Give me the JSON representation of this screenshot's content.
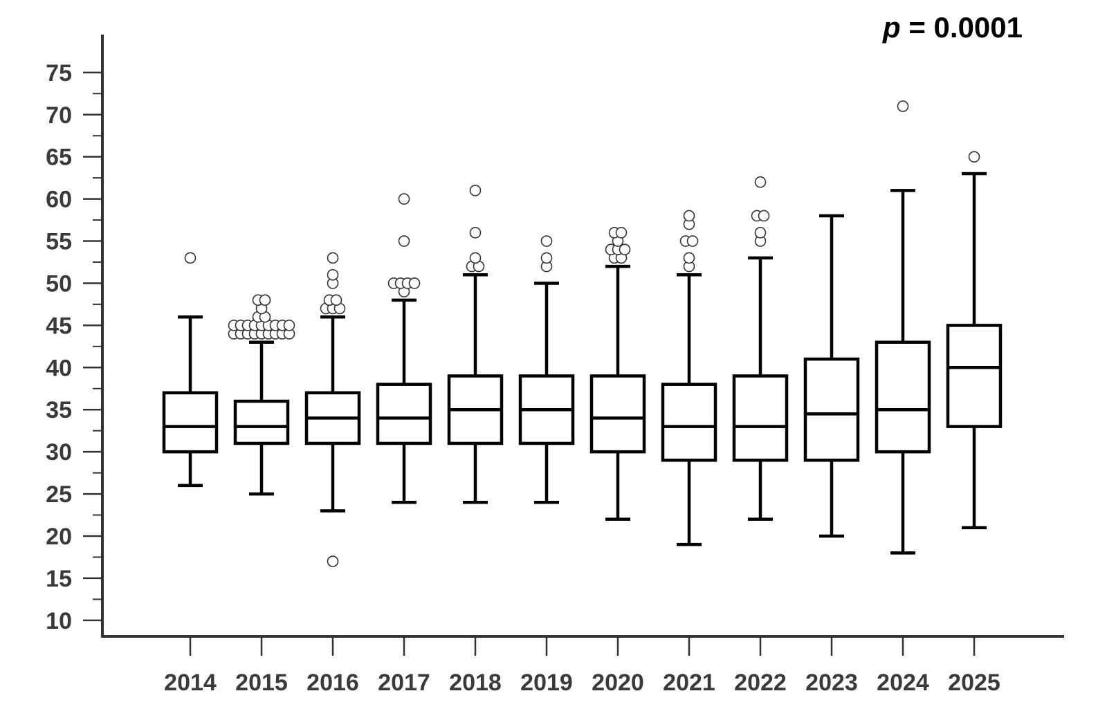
{
  "chart_data": {
    "type": "box",
    "annotation": {
      "italic": "p",
      "rest": " = 0.0001"
    },
    "y_ticks": [
      10,
      15,
      20,
      25,
      30,
      35,
      40,
      45,
      50,
      55,
      60,
      65,
      70,
      75
    ],
    "ylim": [
      8.1,
      79.5
    ],
    "categories": [
      "2014",
      "2015",
      "2016",
      "2017",
      "2018",
      "2019",
      "2020",
      "2021",
      "2022",
      "2023",
      "2024",
      "2025"
    ],
    "boxes": [
      {
        "category": "2014",
        "whisker_low": 26,
        "q1": 30,
        "median": 33,
        "q3": 37,
        "whisker_high": 46,
        "outliers": [
          53
        ]
      },
      {
        "category": "2015",
        "whisker_low": 25,
        "q1": 31,
        "median": 33,
        "q3": 36,
        "whisker_high": 43,
        "outliers": [
          44,
          44,
          44,
          44,
          44,
          44,
          44,
          44,
          44,
          45,
          45,
          45,
          45,
          45,
          45,
          45,
          45,
          45,
          46,
          46,
          47,
          48,
          48
        ]
      },
      {
        "category": "2016",
        "whisker_low": 23,
        "q1": 31,
        "median": 34,
        "q3": 37,
        "whisker_high": 46,
        "outliers": [
          17,
          47,
          47,
          47,
          48,
          48,
          50,
          51,
          53
        ]
      },
      {
        "category": "2017",
        "whisker_low": 24,
        "q1": 31,
        "median": 34,
        "q3": 38,
        "whisker_high": 48,
        "outliers": [
          49,
          50,
          50,
          50,
          50,
          55,
          60
        ]
      },
      {
        "category": "2018",
        "whisker_low": 24,
        "q1": 31,
        "median": 35,
        "q3": 39,
        "whisker_high": 51,
        "outliers": [
          52,
          52,
          53,
          56,
          61
        ]
      },
      {
        "category": "2019",
        "whisker_low": 24,
        "q1": 31,
        "median": 35,
        "q3": 39,
        "whisker_high": 50,
        "outliers": [
          52,
          53,
          55
        ]
      },
      {
        "category": "2020",
        "whisker_low": 22,
        "q1": 30,
        "median": 34,
        "q3": 39,
        "whisker_high": 52,
        "outliers": [
          53,
          53,
          54,
          54,
          54,
          55,
          56,
          56
        ]
      },
      {
        "category": "2021",
        "whisker_low": 19,
        "q1": 29,
        "median": 33,
        "q3": 38,
        "whisker_high": 51,
        "outliers": [
          52,
          53,
          55,
          55,
          57,
          58
        ]
      },
      {
        "category": "2022",
        "whisker_low": 22,
        "q1": 29,
        "median": 33,
        "q3": 39,
        "whisker_high": 53,
        "outliers": [
          55,
          56,
          58,
          58,
          62
        ]
      },
      {
        "category": "2023",
        "whisker_low": 20,
        "q1": 29,
        "median": 34.5,
        "q3": 41,
        "whisker_high": 58,
        "outliers": []
      },
      {
        "category": "2024",
        "whisker_low": 18,
        "q1": 30,
        "median": 35,
        "q3": 43,
        "whisker_high": 61,
        "outliers": [
          71
        ]
      },
      {
        "category": "2025",
        "whisker_low": 21,
        "q1": 33,
        "median": 40,
        "q3": 45,
        "whisker_high": 63,
        "outliers": [
          65
        ]
      }
    ],
    "grid": false,
    "colors": {
      "box": "#000000",
      "axis": "#333333",
      "outlier_fill": "#ffffff"
    }
  }
}
